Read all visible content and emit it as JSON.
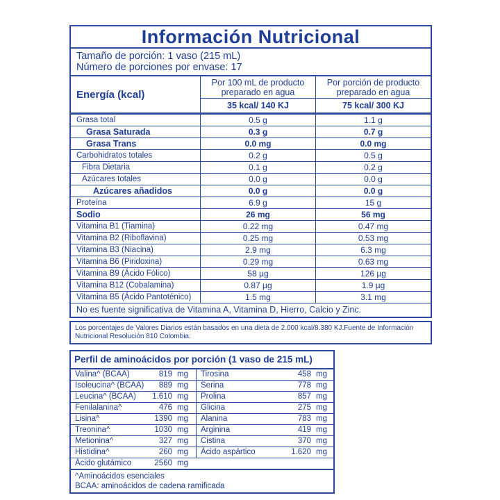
{
  "colors": {
    "accent_blue_text": "#1e3d96",
    "border_blue": "#2d4a9e",
    "background": "#ffffff"
  },
  "header": {
    "title": "Información Nutricional"
  },
  "serving": {
    "size": "Tamaño de porción: 1 vaso (215 mL)",
    "per_container": "Número de porciones por envase: 17"
  },
  "energy": {
    "label": "Energía (kcal)",
    "per_100ml_header": "Por 100 mL de producto preparado en agua",
    "per_serving_header": "Por porción de producto preparado en agua",
    "per_100ml_value": "35 kcal/ 140 KJ",
    "per_serving_value": "75 kcal/ 300 KJ"
  },
  "nutrients": {
    "rows": [
      {
        "label": "Grasa total",
        "per100": "0.5 g",
        "perServing": "1.1 g"
      },
      {
        "label": "Grasa Saturada",
        "per100": "0.3 g",
        "perServing": "0.7 g"
      },
      {
        "label": "Grasa Trans",
        "per100": "0.0 mg",
        "perServing": "0.0 mg"
      },
      {
        "label": "Carbohidratos totales",
        "per100": "0.2 g",
        "perServing": "0.5 g"
      },
      {
        "label": "Fibra Dietaria",
        "per100": "0.1 g",
        "perServing": "0.2 g"
      },
      {
        "label": "Azúcares totales",
        "per100": "0.0 g",
        "perServing": "0.0 g"
      },
      {
        "label": "Azúcares añadidos",
        "per100": "0.0 g",
        "perServing": "0.0 g"
      },
      {
        "label": "Proteína",
        "per100": "6.9 g",
        "perServing": "15 g"
      },
      {
        "label": "Sodio",
        "per100": "26 mg",
        "perServing": "56 mg"
      },
      {
        "label": "Vitamina B1 (Tiamina)",
        "per100": "0.22 mg",
        "perServing": "0.47 mg"
      },
      {
        "label": "Vitamina B2 (Riboflavina)",
        "per100": "0.25 mg",
        "perServing": "0.53 mg"
      },
      {
        "label": "Vitamina B3 (Niacina)",
        "per100": "2.9 mg",
        "perServing": "6.3 mg"
      },
      {
        "label": "Vitamina B6 (Piridoxina)",
        "per100": "0.29 mg",
        "perServing": "0.63 mg"
      },
      {
        "label": "Vitamina B9 (Ácido Fólico)",
        "per100": "58 µg",
        "perServing": "126 µg"
      },
      {
        "label": "Vitamina B12 (Cobalamina)",
        "per100": "0.87 µg",
        "perServing": "1.9 µg"
      },
      {
        "label": "Vitamina B5 (Ácido Pantoténico)",
        "per100": "1.5 mg",
        "perServing": "3.1 mg"
      }
    ],
    "footnote": "No es fuente significativa de Vitamina A, Vitamina D, Hierro, Calcio y Zinc."
  },
  "daily_values_note": "Los porcentajes de Valores Diarios están basados en una dieta de 2.000 kcal/8.380 KJ.Fuente de Información Nutricional Resolución 810 Colombia.",
  "amino_acids": {
    "title": "Perfil de aminoácidos por porción (1 vaso de 215 mL)",
    "rows": [
      {
        "l_name": "Valina^ (BCAA)",
        "l_val": "819",
        "l_unit": "mg",
        "r_name": "Tirosina",
        "r_val": "458",
        "r_unit": "mg"
      },
      {
        "l_name": "Isoleucina^ (BCAA)",
        "l_val": "889",
        "l_unit": "mg",
        "r_name": "Serina",
        "r_val": "778",
        "r_unit": "mg"
      },
      {
        "l_name": "Leucina^ (BCAA)",
        "l_val": "1.610",
        "l_unit": "mg",
        "r_name": "Prolina",
        "r_val": "857",
        "r_unit": "mg"
      },
      {
        "l_name": "Fenilalanina^",
        "l_val": "476",
        "l_unit": "mg",
        "r_name": "Glicina",
        "r_val": "275",
        "r_unit": "mg"
      },
      {
        "l_name": "Lisina^",
        "l_val": "1390",
        "l_unit": "mg",
        "r_name": "Alanina",
        "r_val": "783",
        "r_unit": "mg"
      },
      {
        "l_name": "Treonina^",
        "l_val": "1030",
        "l_unit": "mg",
        "r_name": "Arginina",
        "r_val": "419",
        "r_unit": "mg"
      },
      {
        "l_name": "Metionina^",
        "l_val": "327",
        "l_unit": "mg",
        "r_name": "Cistina",
        "r_val": "370",
        "r_unit": "mg"
      },
      {
        "l_name": "Histidina^",
        "l_val": "260",
        "l_unit": "mg",
        "r_name": "Ácido aspártico",
        "r_val": "1.620",
        "r_unit": "mg"
      },
      {
        "l_name": "Ácido glutámico",
        "l_val": "2560",
        "l_unit": "mg",
        "r_name": "",
        "r_val": "",
        "r_unit": ""
      }
    ],
    "footnotes": [
      "^Aminoácidos esenciales",
      "BCAA: aminoácidos de cadena ramificada"
    ]
  }
}
